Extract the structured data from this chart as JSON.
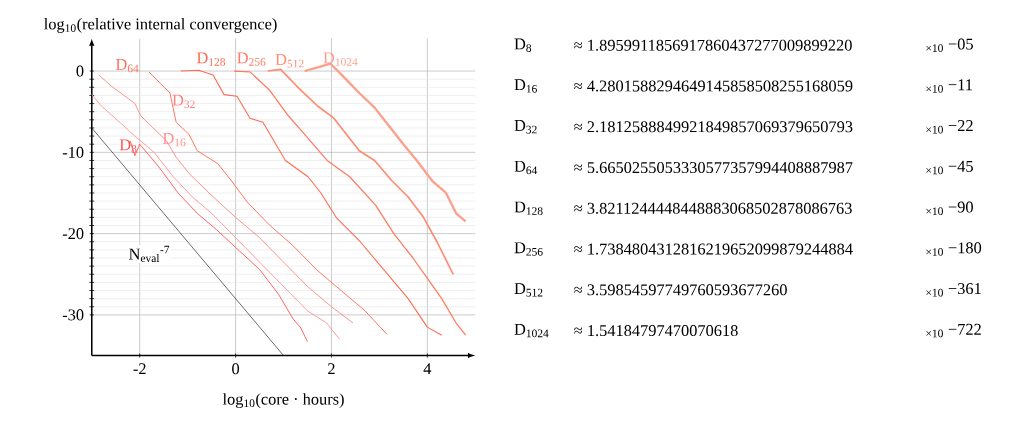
{
  "chart_data": [
    {
      "type": "line",
      "xlabel": "log$_{10}$(core · hours)",
      "ylabel": "log$_{10}$(relative internal convergence)",
      "xlim": [
        -3,
        5
      ],
      "ylim": [
        -35,
        4
      ],
      "xticks": [
        -2,
        0,
        2,
        4
      ],
      "yticks": [
        -30,
        -20,
        -10,
        0
      ],
      "grid": true,
      "series": [
        {
          "name": "D$_{8}$",
          "color": "#ff5050",
          "x": [
            -2.2,
            -2.1,
            -2.0,
            -1.6,
            -1.2,
            -0.8,
            -0.4,
            0,
            0.5,
            0.9,
            1.2,
            1.35,
            1.5
          ],
          "values": [
            -8.6,
            -10.4,
            -9,
            -11.8,
            -15,
            -17.5,
            -19.5,
            -21.7,
            -24.4,
            -27.5,
            -30.5,
            -31.5,
            -33.3
          ]
        },
        {
          "name": "D$_{16}$",
          "color": "#ff8f8f",
          "x": [
            -3,
            -2.8,
            -2.4,
            -2.1,
            -1.7,
            -1.3,
            -0.9,
            -0.5,
            0,
            0.5,
            1.0,
            1.5,
            1.9,
            2.17
          ],
          "values": [
            -2.9,
            -4.3,
            -6.4,
            -8,
            -10,
            -13,
            -15.5,
            -17.5,
            -20.5,
            -23.5,
            -26.5,
            -29.5,
            -31,
            -33
          ]
        },
        {
          "name": "D$_{32}$",
          "color": "#ff8080",
          "x": [
            -2.85,
            -2.58,
            -2.1,
            -1.98,
            -1.44,
            -1.24,
            -0.97,
            -0.5,
            0,
            0.5,
            1.0,
            1.5,
            2.0,
            2.45
          ],
          "values": [
            -0.5,
            -1.9,
            -4,
            -5.5,
            -8.6,
            -10.6,
            -12.6,
            -15.3,
            -18,
            -20.5,
            -23.5,
            -26.5,
            -29,
            -31
          ]
        },
        {
          "name": "D$_{64}$",
          "color": "#ff7060",
          "x": [
            -1.81,
            -1.37,
            -1.24,
            -0.97,
            -0.8,
            -0.37,
            -0.1,
            0.24,
            0.7,
            1.2,
            1.7,
            2.2,
            2.7,
            3.16
          ],
          "values": [
            -0.1,
            -2.7,
            -6.3,
            -7.8,
            -9.8,
            -11.4,
            -13.4,
            -16.1,
            -18.9,
            -21.5,
            -24.5,
            -27,
            -29.5,
            -32.4
          ]
        },
        {
          "name": "D$_{128}$",
          "color": "#ff6a50",
          "x": [
            -1.14,
            -0.77,
            -0.47,
            -0.24,
            0.03,
            0.3,
            0.57,
            1.04,
            1.51,
            1.78,
            2.11,
            2.6,
            3.1,
            3.6,
            4.0,
            4.3
          ],
          "values": [
            0,
            0.1,
            -0.5,
            -2.9,
            -3.1,
            -5.8,
            -6.3,
            -11,
            -13,
            -15,
            -18.1,
            -21,
            -24.5,
            -28,
            -31.5,
            -32.5
          ]
        },
        {
          "name": "D$_{256}$",
          "color": "#ff7a60",
          "x": [
            -0.03,
            0.3,
            0.7,
            1.1,
            1.44,
            1.91,
            2.38,
            2.92,
            3.3,
            3.7,
            4.0,
            4.3,
            4.6,
            4.8
          ],
          "values": [
            0,
            -0.1,
            -2.3,
            -5.5,
            -7.8,
            -11,
            -13,
            -16.5,
            -20,
            -23,
            -25.5,
            -28,
            -31,
            -32.5
          ]
        },
        {
          "name": "D$_{512}$",
          "color": "#ff8a70",
          "x": [
            0.67,
            0.94,
            1.3,
            1.71,
            2.05,
            2.58,
            2.9,
            3.26,
            3.6,
            3.92,
            4.2,
            4.54
          ],
          "values": [
            0,
            0.2,
            -2,
            -4.3,
            -5.8,
            -9.8,
            -11,
            -13.5,
            -15.5,
            -18,
            -21,
            -25
          ]
        },
        {
          "name": "D$_{1024}$",
          "color": "#fca08c",
          "x": [
            1.44,
            1.98,
            2.3,
            2.58,
            2.9,
            3.18,
            3.5,
            3.78,
            4.1,
            4.39,
            4.6,
            4.8
          ],
          "values": [
            0,
            0.9,
            -1,
            -2.7,
            -4.5,
            -6.6,
            -9,
            -11,
            -13.5,
            -15,
            -17.5,
            -18.5
          ]
        },
        {
          "type": "line",
          "color": "#000000",
          "x": [
            -3,
            1
          ],
          "values": [
            -7,
            -35
          ]
        }
      ],
      "annotations": [
        {
          "text": "N$_{eval}$$^{-7}$",
          "x": -1.8,
          "y": -22.5
        }
      ]
    },
    {
      "type": "other",
      "annotations": [
        "D$_{8}$",
        "≈ 1.8959911856917860437277009899220",
        "$_{×10}$ −05",
        "D$_{16}$",
        "≈ 4.2801588294649145858508255168059",
        "$_{×10}$ −11",
        "D$_{32}$",
        "≈ 2.1812588849921849857069379650793",
        "$_{×10}$ −22",
        "D$_{64}$",
        "≈ 5.6650255053330577357994408887987",
        "$_{×10}$ −45",
        "D$_{128}$",
        "≈ 3.8211244448448883068502878086763",
        "$_{×10}$ −90",
        "D$_{256}$",
        "≈ 1.7384804312816219652099879244884",
        "$_{×10}$ −180",
        "D$_{512}$",
        "≈ 3.59854597749760593677260",
        "$_{×10}$ −361",
        "D$_{1024}$",
        "≈ 1.54184797470070618",
        "$_{×10}$ −722"
      ]
    }
  ]
}
